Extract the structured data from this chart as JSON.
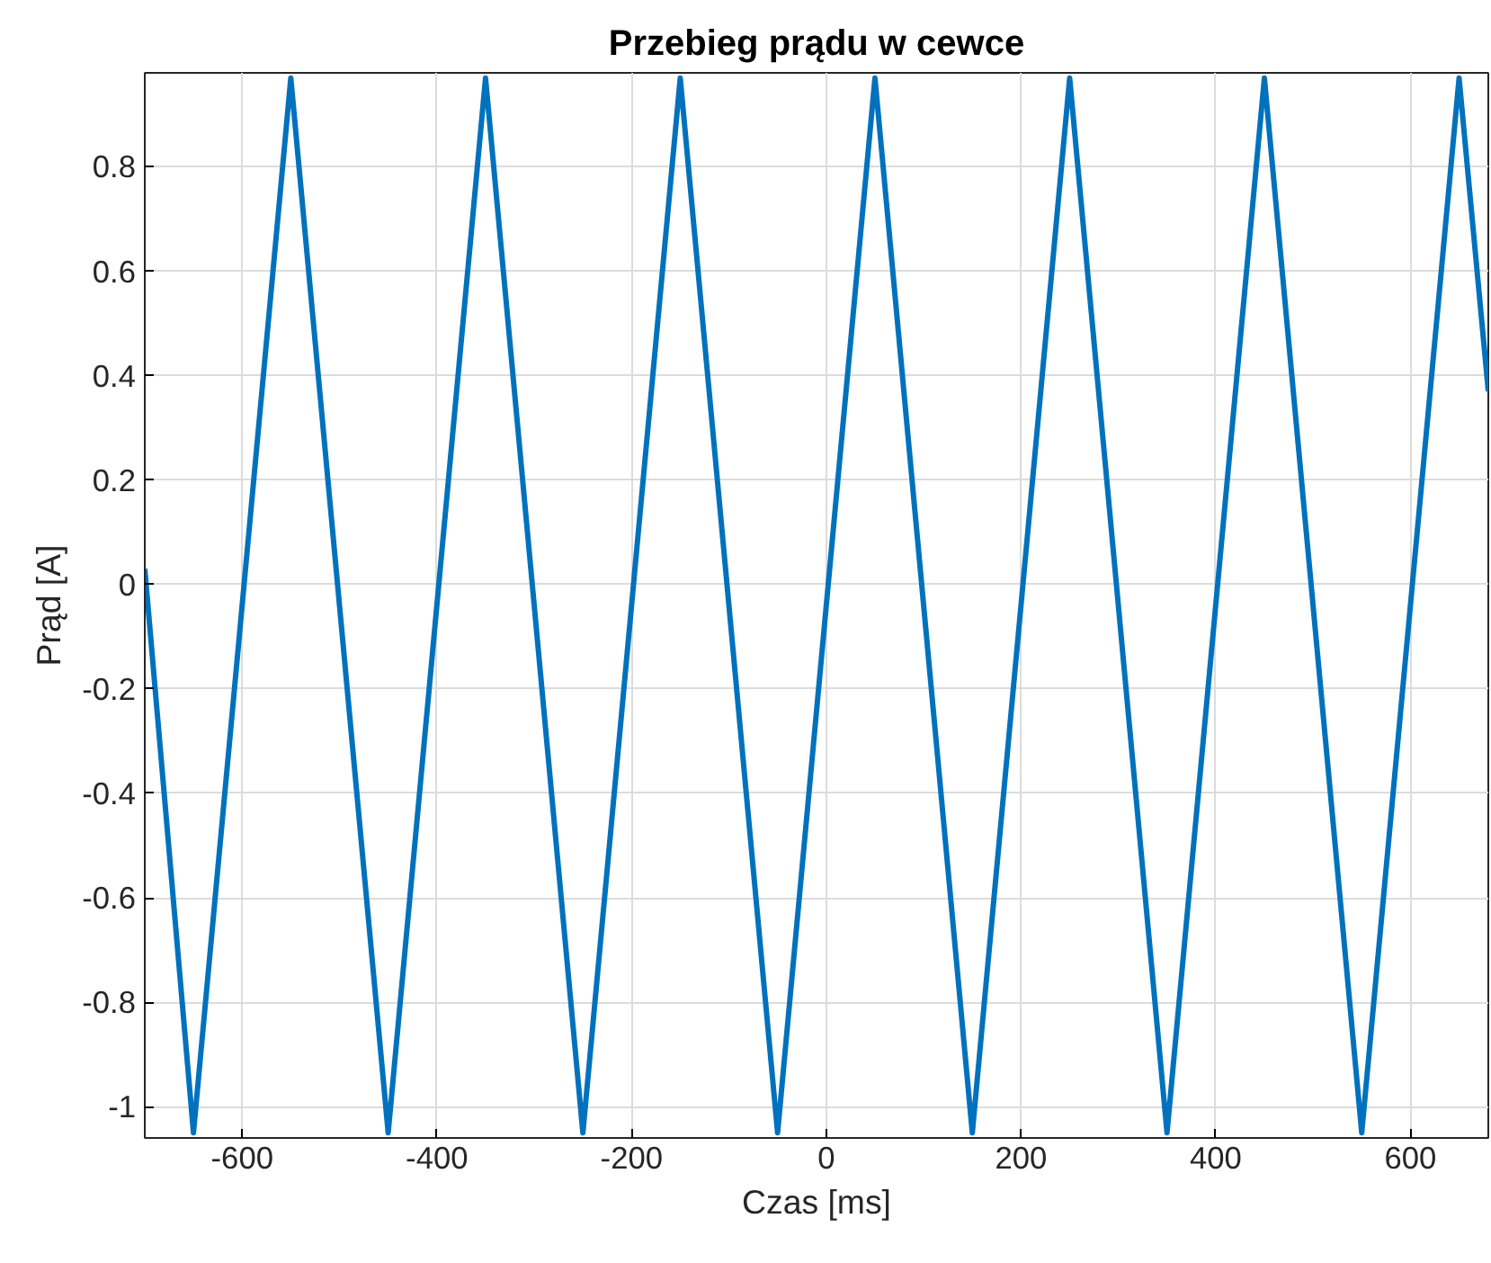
{
  "chart_data": {
    "type": "line",
    "title": "Przebieg prądu w cewce",
    "xlabel": "Czas [ms]",
    "ylabel": "Prąd [A]",
    "x": [
      -700,
      -650,
      -550,
      -450,
      -350,
      -250,
      -150,
      -50,
      50,
      150,
      250,
      350,
      450,
      550,
      650,
      680
    ],
    "series": [
      {
        "color": "#0072bd",
        "values": [
          0.03,
          -1.05,
          0.97,
          -1.05,
          0.97,
          -1.05,
          0.97,
          -1.05,
          0.97,
          -1.05,
          0.97,
          -1.05,
          0.97,
          -1.05,
          0.97,
          0.37
        ]
      }
    ],
    "xlim": [
      -700,
      680
    ],
    "ylim": [
      -1.06,
      0.98
    ],
    "xticks": [
      -600,
      -400,
      -200,
      0,
      200,
      400,
      600
    ],
    "yticks": [
      -1,
      -0.8,
      -0.6,
      -0.4,
      -0.2,
      0,
      0.2,
      0.4,
      0.6,
      0.8
    ],
    "grid": true,
    "marker": "none",
    "line_style": "solid"
  }
}
